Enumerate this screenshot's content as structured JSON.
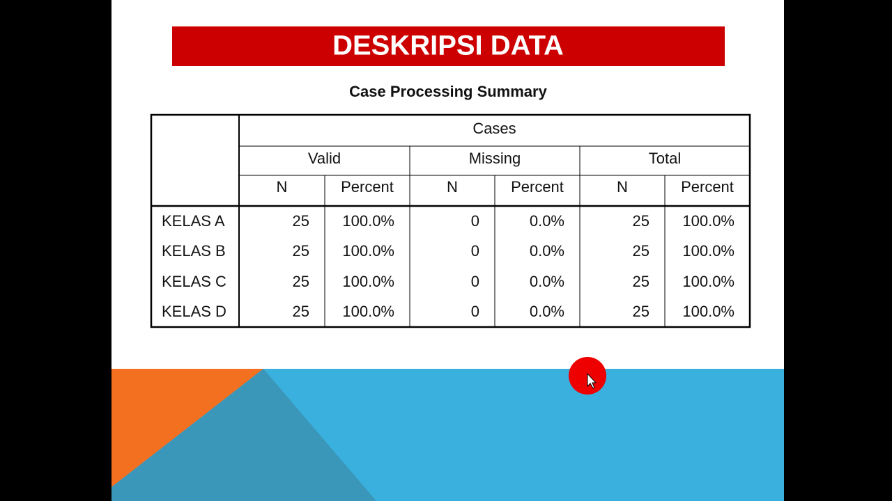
{
  "header": {
    "title": "DESKRIPSI DATA"
  },
  "table": {
    "title": "Case Processing Summary",
    "group": "Cases",
    "subgroups": [
      "Valid",
      "Missing",
      "Total"
    ],
    "columns": [
      "N",
      "Percent",
      "N",
      "Percent",
      "N",
      "Percent"
    ],
    "rows": [
      [
        "KELAS A",
        "25",
        "100.0%",
        "0",
        "0.0%",
        "25",
        "100.0%"
      ],
      [
        "KELAS B",
        "25",
        "100.0%",
        "0",
        "0.0%",
        "25",
        "100.0%"
      ],
      [
        "KELAS C",
        "25",
        "100.0%",
        "0",
        "0.0%",
        "25",
        "100.0%"
      ],
      [
        "KELAS D",
        "25",
        "100.0%",
        "0",
        "0.0%",
        "25",
        "100.0%"
      ]
    ]
  }
}
